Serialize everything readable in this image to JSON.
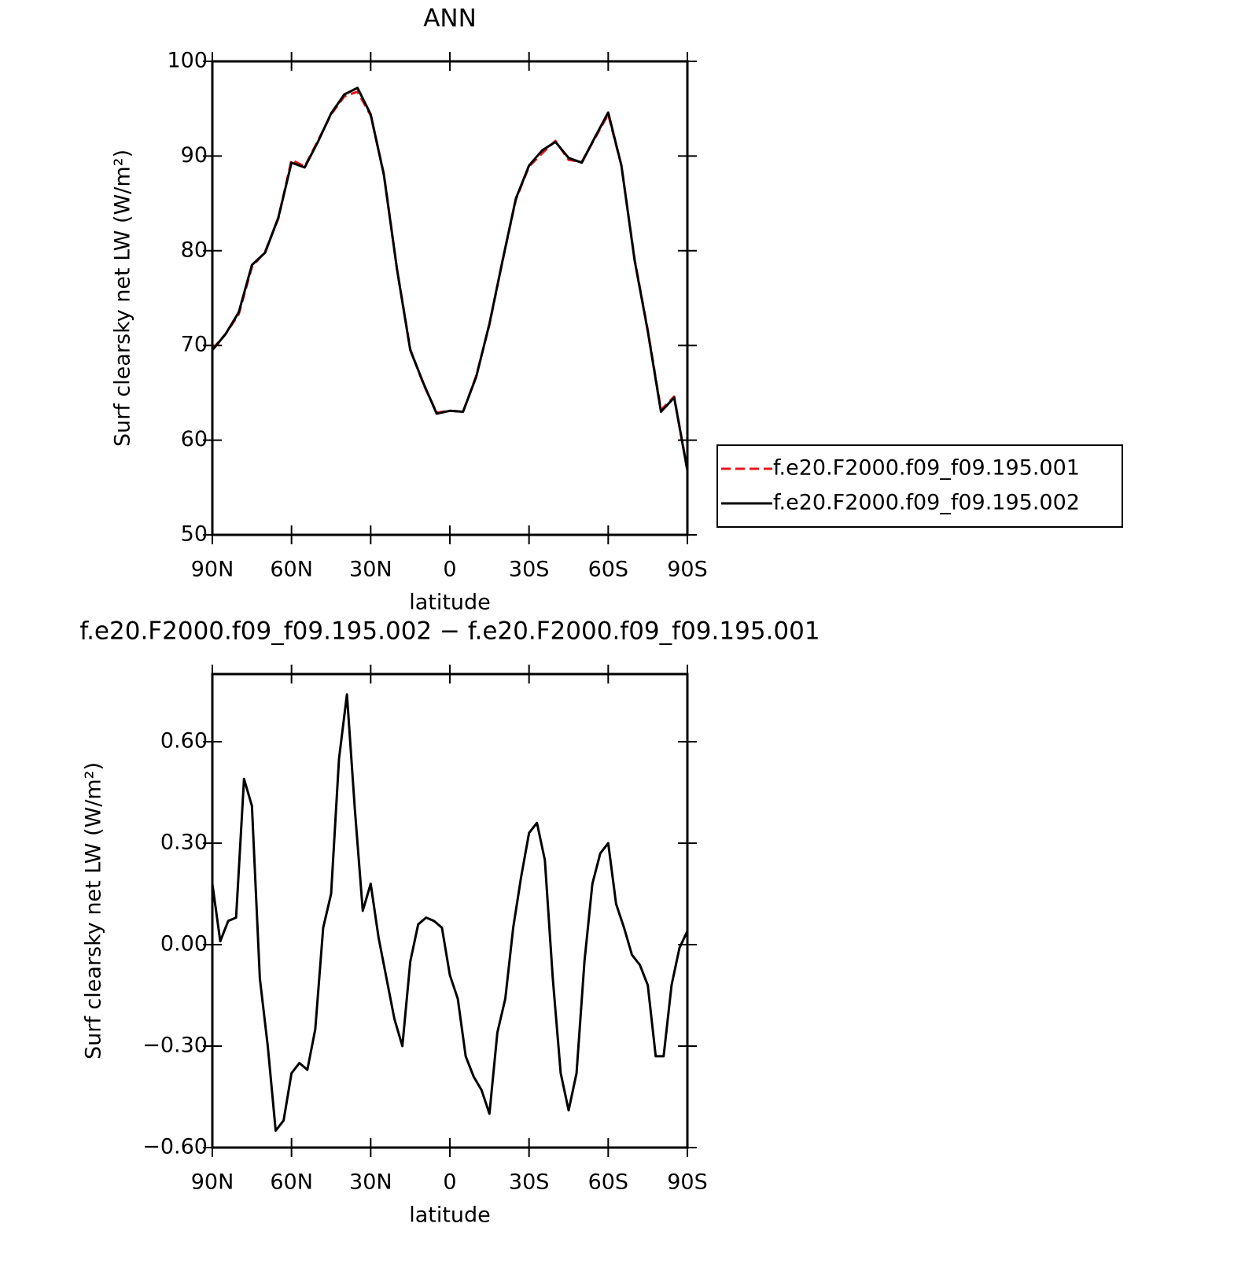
{
  "chart_data": [
    {
      "type": "line",
      "title": "ANN",
      "xlabel": "latitude",
      "ylabel": "Surf clearsky net LW (W/m²)",
      "x": [
        90,
        85,
        80,
        75,
        70,
        65,
        60,
        55,
        50,
        45,
        40,
        35,
        30,
        25,
        20,
        15,
        10,
        5,
        0,
        -5,
        -10,
        -15,
        -20,
        -25,
        -30,
        -35,
        -40,
        -45,
        -50,
        -55,
        -60,
        -65,
        -70,
        -75,
        -80,
        -85,
        -90
      ],
      "series": [
        {
          "name": "f.e20.F2000.f09_f09.195.001",
          "color": "#e8141b",
          "dashed": true,
          "values": [
            69.6,
            71.2,
            73.3,
            78.3,
            79.9,
            83.4,
            89.6,
            88.9,
            91.6,
            94.4,
            96.3,
            96.8,
            94.3,
            88.1,
            78.0,
            69.6,
            65.9,
            62.9,
            63.1,
            63.0,
            66.8,
            72.2,
            79.0,
            85.4,
            88.9,
            90.3,
            91.6,
            89.6,
            89.4,
            91.9,
            94.4,
            89.0,
            79.1,
            71.6,
            63.2,
            64.6,
            56.8
          ]
        },
        {
          "name": "f.e20.F2000.f09_f09.195.002",
          "color": "#000000",
          "dashed": false,
          "values": [
            69.5,
            71.2,
            73.5,
            78.5,
            79.8,
            83.5,
            89.3,
            88.8,
            91.5,
            94.5,
            96.5,
            97.2,
            94.4,
            88.0,
            78.0,
            69.5,
            66.0,
            62.8,
            63.1,
            63.0,
            66.7,
            72.3,
            79.0,
            85.5,
            89.0,
            90.6,
            91.5,
            89.8,
            89.3,
            92.0,
            94.6,
            89.0,
            79.0,
            71.5,
            63.0,
            64.5,
            56.8
          ]
        }
      ],
      "xlim": [
        90,
        -90
      ],
      "xticks": [
        {
          "value": 90,
          "label": "90N"
        },
        {
          "value": 60,
          "label": "60N"
        },
        {
          "value": 30,
          "label": "30N"
        },
        0,
        {
          "value": -30,
          "label": "30S"
        },
        {
          "value": -60,
          "label": "60S"
        },
        {
          "value": -90,
          "label": "90S"
        }
      ],
      "ylim": [
        50,
        100
      ],
      "yticks": [
        50,
        60,
        70,
        80,
        90,
        100
      ],
      "legend": "right"
    },
    {
      "type": "line",
      "title": "f.e20.F2000.f09_f09.195.002 − f.e20.F2000.f09_f09.195.001",
      "xlabel": "latitude",
      "ylabel": "Surf clearsky net LW (W/m²)",
      "x": [
        90,
        87,
        84,
        81,
        78,
        75,
        72,
        69,
        66,
        63,
        60,
        57,
        54,
        51,
        48,
        45,
        42,
        39,
        36,
        33,
        30,
        27,
        24,
        21,
        18,
        15,
        12,
        9,
        6,
        3,
        0,
        -3,
        -6,
        -9,
        -12,
        -15,
        -18,
        -21,
        -24,
        -27,
        -30,
        -33,
        -36,
        -39,
        -42,
        -45,
        -48,
        -51,
        -54,
        -57,
        -60,
        -63,
        -66,
        -69,
        -72,
        -75,
        -78,
        -81,
        -84,
        -87,
        -90
      ],
      "series": [
        {
          "color": "#000000",
          "values": [
            0.18,
            0.01,
            0.07,
            0.08,
            0.49,
            0.41,
            -0.1,
            -0.3,
            -0.55,
            -0.52,
            -0.38,
            -0.35,
            -0.37,
            -0.25,
            0.05,
            0.15,
            0.55,
            0.74,
            0.4,
            0.1,
            0.18,
            0.02,
            -0.1,
            -0.22,
            -0.3,
            -0.05,
            0.06,
            0.08,
            0.07,
            0.05,
            -0.09,
            -0.16,
            -0.33,
            -0.39,
            -0.43,
            -0.5,
            -0.26,
            -0.16,
            0.05,
            0.2,
            0.33,
            0.36,
            0.25,
            -0.1,
            -0.38,
            -0.49,
            -0.38,
            -0.05,
            0.18,
            0.27,
            0.3,
            0.12,
            0.05,
            -0.03,
            -0.06,
            -0.12,
            -0.33,
            -0.33,
            -0.12,
            -0.01,
            0.04
          ]
        }
      ],
      "xlim": [
        90,
        -90
      ],
      "xticks": [
        {
          "value": 90,
          "label": "90N"
        },
        {
          "value": 60,
          "label": "60N"
        },
        {
          "value": 30,
          "label": "30N"
        },
        0,
        {
          "value": -30,
          "label": "30S"
        },
        {
          "value": -60,
          "label": "60S"
        },
        {
          "value": -90,
          "label": "90S"
        }
      ],
      "ylim": [
        -0.6,
        0.8
      ],
      "yticks": [
        {
          "value": -0.6,
          "label": "−0.60"
        },
        {
          "value": -0.3,
          "label": "−0.30"
        },
        {
          "value": 0,
          "label": "0.00"
        },
        {
          "value": 0.3,
          "label": "0.30"
        },
        {
          "value": 0.6,
          "label": "0.60"
        }
      ]
    }
  ]
}
